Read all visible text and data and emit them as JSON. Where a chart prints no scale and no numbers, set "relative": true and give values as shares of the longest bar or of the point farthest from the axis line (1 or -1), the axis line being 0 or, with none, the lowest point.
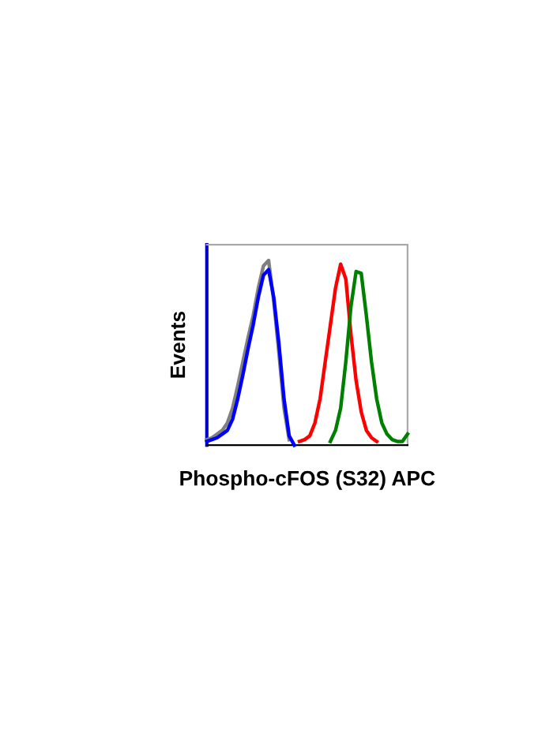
{
  "chart_data": {
    "type": "line",
    "relative": true,
    "xlabel": "Phospho-cFOS (S32) APC",
    "ylabel": "Events",
    "categories": [
      null,
      null,
      null,
      null,
      null,
      null,
      null,
      null,
      null,
      null,
      null,
      null,
      null,
      null,
      null,
      null,
      null,
      null,
      null,
      null,
      null,
      null,
      null,
      null,
      null,
      null,
      null,
      null,
      null,
      null,
      null,
      null,
      null,
      null,
      null,
      null,
      null,
      null,
      null,
      null
    ],
    "series": [
      {
        "color": "#808080",
        "values": [
          0.03,
          0.04,
          0.06,
          0.08,
          0.12,
          0.2,
          0.32,
          0.45,
          0.58,
          0.7,
          0.85,
          0.97,
          1.0,
          0.78,
          0.5,
          0.2,
          0.03,
          null,
          null,
          null,
          null,
          null,
          null,
          null,
          null,
          null,
          null,
          null,
          null,
          null,
          null,
          null,
          null,
          null,
          null,
          null,
          null,
          null,
          null,
          null
        ]
      },
      {
        "color": "#0000ff",
        "values": [
          0.02,
          0.03,
          0.04,
          0.06,
          0.08,
          0.14,
          0.25,
          0.38,
          0.52,
          0.65,
          0.8,
          0.92,
          0.95,
          0.8,
          0.55,
          0.25,
          0.05,
          0,
          null,
          null,
          null,
          null,
          null,
          null,
          null,
          null,
          null,
          null,
          null,
          null,
          null,
          null,
          null,
          null,
          null,
          null,
          null,
          null,
          null,
          null
        ]
      },
      {
        "color": "#ff0000",
        "values": [
          null,
          null,
          null,
          null,
          null,
          null,
          null,
          null,
          null,
          null,
          null,
          null,
          null,
          null,
          null,
          null,
          null,
          null,
          0.02,
          0.03,
          0.05,
          0.12,
          0.25,
          0.45,
          0.65,
          0.85,
          0.98,
          0.9,
          0.6,
          0.35,
          0.18,
          0.08,
          0.04,
          0.02,
          null,
          null,
          null,
          null,
          null,
          null
        ]
      },
      {
        "color": "#008000",
        "values": [
          null,
          null,
          null,
          null,
          null,
          null,
          null,
          null,
          null,
          null,
          null,
          null,
          null,
          null,
          null,
          null,
          null,
          null,
          null,
          null,
          null,
          null,
          null,
          null,
          0.02,
          0.08,
          0.2,
          0.45,
          0.75,
          0.94,
          0.93,
          0.7,
          0.45,
          0.25,
          0.12,
          0.06,
          0.03,
          0.02,
          0.02,
          0.06
        ]
      }
    ]
  }
}
